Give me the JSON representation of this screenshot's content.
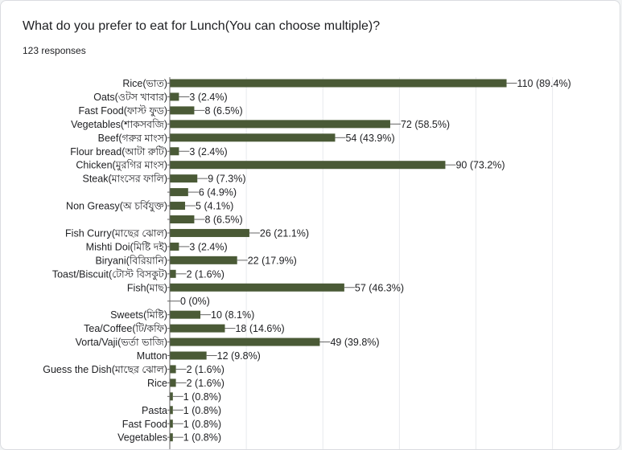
{
  "question": "What do you prefer to eat for Lunch(You can choose multiple)?",
  "responses_label": "123 responses",
  "colors": {
    "bar": "#4a5a36",
    "grid": "#e8eaed",
    "axis": "#666666",
    "text": "#202124"
  },
  "chart_data": {
    "type": "bar",
    "orientation": "horizontal",
    "title": "What do you prefer to eat for Lunch(You can choose multiple)?",
    "total_responses": 123,
    "xlim": [
      0,
      125
    ],
    "grid": true,
    "categories": [
      "Rice(ভাত)",
      "Oats(ওটস খাবার)",
      "Fast Food(ফাস্ট ফুড)",
      "Vegetables(শাকসবজি)",
      "Beef(গরুর মাংস)",
      "Flour bread(আটা রুটি)",
      "Chicken(মুরগির মাংস)",
      "Steak(মাংসের ফালি)",
      "",
      "Non Greasy(অ চর্বিযুক্ত)",
      "",
      "Fish Curry(মাছের ঝোল)",
      "Mishti Doi(মিষ্টি দই)",
      "Biryani(বিরিয়ানি)",
      "Toast/Biscuit(টোস্ট বিসকুট)",
      "Fish(মাছ)",
      "",
      "Sweets(মিষ্টি)",
      "Tea/Coffee(টি/কফি)",
      "Vorta/Vaji(ভর্তা ভাজি)",
      "Mutton",
      "Guess the Dish(মাছের ঝোল)",
      "Rice",
      "",
      "Pasta",
      "Fast Food",
      "Vegetables"
    ],
    "values": [
      110,
      3,
      8,
      72,
      54,
      3,
      90,
      9,
      6,
      5,
      8,
      26,
      3,
      22,
      2,
      57,
      0,
      10,
      18,
      49,
      12,
      2,
      2,
      1,
      1,
      1,
      1
    ],
    "value_labels": [
      "110 (89.4%)",
      "3 (2.4%)",
      "8 (6.5%)",
      "72 (58.5%)",
      "54 (43.9%)",
      "3 (2.4%)",
      "90 (73.2%)",
      "9 (7.3%)",
      "6 (4.9%)",
      "5 (4.1%)",
      "8 (6.5%)",
      "26 (21.1%)",
      "3 (2.4%)",
      "22 (17.9%)",
      "2 (1.6%)",
      "57 (46.3%)",
      "0 (0%)",
      "10 (8.1%)",
      "18 (14.6%)",
      "49 (39.8%)",
      "12 (9.8%)",
      "2 (1.6%)",
      "2 (1.6%)",
      "1 (0.8%)",
      "1 (0.8%)",
      "1 (0.8%)",
      "1 (0.8%)"
    ]
  }
}
